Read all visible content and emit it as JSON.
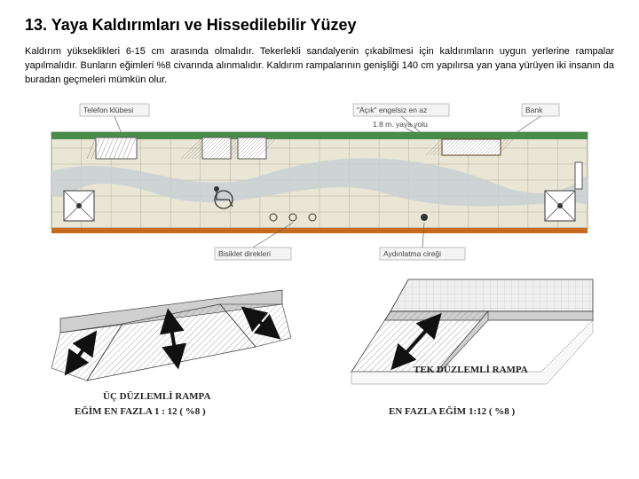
{
  "heading": "13. Yaya Kaldırımları ve Hissedilebilir Yüzey",
  "paragraph": "Kaldırım yükseklikleri 6-15 cm arasında olmalıdır. Tekerlekli sandalyenin çıkabilmesi için kaldırımların uygun yerlerine rampalar yapılmalıdır. Bunların eğimleri %8 civarında alınmalıdır. Kaldırım rampalarının genişliği 140 cm yapılırsa yan yana yürüyen iki insanın da buradan geçmeleri mümkün olur.",
  "plan": {
    "labels": {
      "telefon": "Telefon klübesi",
      "acik": "\"Açık\" engelsiz en az",
      "yaya": "1.8 m. yaya yolu",
      "bank": "Bank",
      "bisiklet": "Bisiklet direkleri",
      "aydin": "Aydınlatma cireği"
    },
    "colors": {
      "pavement_fill": "#e9e6d6",
      "grid_stroke": "#9a9a88",
      "wave_fill": "#c9cfd2",
      "border_green": "#2e7d32",
      "kerb_orange": "#c76a1b",
      "hatch": "#8a8a8a",
      "object_stroke": "#555555",
      "label_box": "#f4f4f4"
    },
    "grid": {
      "cols": 18,
      "rows": 6
    }
  },
  "ramps": {
    "left_title": "ÜÇ DÜZLEMLİ RAMPA",
    "left_sub": "EĞİM EN FAZLA 1 : 12 ( %8 )",
    "right_title": "TEK DÜZLEMLİ RAMPA",
    "right_sub": "EN FAZLA EĞİM  1:12 ( %8 )",
    "colors": {
      "kerb": "#cfcfcf",
      "ramp_fill": "#e6e6e6",
      "arrow": "#111111",
      "outline": "#333333",
      "tile_hatch": "#9a9a9a"
    }
  }
}
